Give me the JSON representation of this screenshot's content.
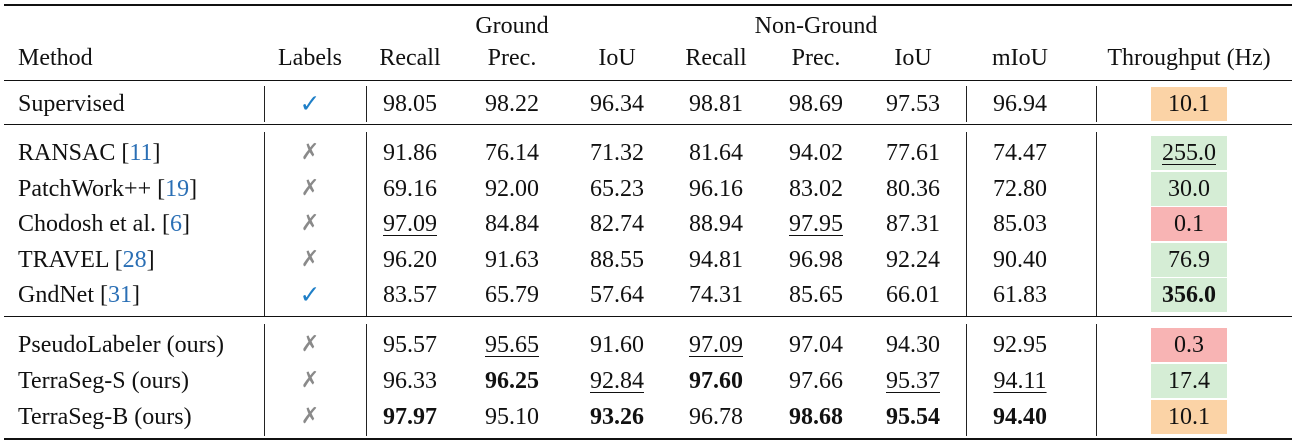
{
  "header": {
    "group_ground": "Ground",
    "group_nonground": "Non-Ground",
    "columns": [
      "Method",
      "Labels",
      "Recall",
      "Prec.",
      "IoU",
      "Recall",
      "Prec.",
      "IoU",
      "mIoU",
      "Throughput (Hz)"
    ]
  },
  "groups": [
    [
      {
        "name": "Supervised",
        "ref": "",
        "labels": "✓",
        "labels_kind": "check",
        "values": [
          "98.05",
          "98.22",
          "96.34",
          "98.81",
          "98.69",
          "97.53",
          "96.94"
        ],
        "bold": [],
        "underline": [],
        "throughput": "10.1",
        "tp_color": "#fbd3a6",
        "tp_bold": false,
        "tp_underline": false
      }
    ],
    [
      {
        "name": "RANSAC ",
        "ref": "11",
        "labels": "✗",
        "labels_kind": "cross",
        "values": [
          "91.86",
          "76.14",
          "71.32",
          "81.64",
          "94.02",
          "77.61",
          "74.47"
        ],
        "bold": [],
        "underline": [],
        "throughput": "255.0",
        "tp_color": "#d5edd5",
        "tp_bold": false,
        "tp_underline": true
      },
      {
        "name": "PatchWork++ ",
        "ref": "19",
        "labels": "✗",
        "labels_kind": "cross",
        "values": [
          "69.16",
          "92.00",
          "65.23",
          "96.16",
          "83.02",
          "80.36",
          "72.80"
        ],
        "bold": [],
        "underline": [],
        "throughput": "30.0",
        "tp_color": "#d5edd5",
        "tp_bold": false,
        "tp_underline": false
      },
      {
        "name": "Chodosh et al. ",
        "ref": "6",
        "labels": "✗",
        "labels_kind": "cross",
        "values": [
          "97.09",
          "84.84",
          "82.74",
          "88.94",
          "97.95",
          "87.31",
          "85.03"
        ],
        "bold": [],
        "underline": [
          0,
          4
        ],
        "throughput": "0.1",
        "tp_color": "#f8b4b4",
        "tp_bold": false,
        "tp_underline": false
      },
      {
        "name": "TRAVEL ",
        "ref": "28",
        "labels": "✗",
        "labels_kind": "cross",
        "values": [
          "96.20",
          "91.63",
          "88.55",
          "94.81",
          "96.98",
          "92.24",
          "90.40"
        ],
        "bold": [],
        "underline": [],
        "throughput": "76.9",
        "tp_color": "#d5edd5",
        "tp_bold": false,
        "tp_underline": false
      },
      {
        "name": "GndNet ",
        "ref": "31",
        "labels": "✓",
        "labels_kind": "check",
        "values": [
          "83.57",
          "65.79",
          "57.64",
          "74.31",
          "85.65",
          "66.01",
          "61.83"
        ],
        "bold": [],
        "underline": [],
        "throughput": "356.0",
        "tp_color": "#d5edd5",
        "tp_bold": true,
        "tp_underline": false
      }
    ],
    [
      {
        "name": "PseudoLabeler (ours)",
        "ref": "",
        "labels": "✗",
        "labels_kind": "cross",
        "values": [
          "95.57",
          "95.65",
          "91.60",
          "97.09",
          "97.04",
          "94.30",
          "92.95"
        ],
        "bold": [],
        "underline": [
          1,
          3
        ],
        "throughput": "0.3",
        "tp_color": "#f8b4b4",
        "tp_bold": false,
        "tp_underline": false
      },
      {
        "name": "TerraSeg-S (ours)",
        "ref": "",
        "labels": "✗",
        "labels_kind": "cross",
        "values": [
          "96.33",
          "96.25",
          "92.84",
          "97.60",
          "97.66",
          "95.37",
          "94.11"
        ],
        "bold": [
          1,
          3
        ],
        "underline": [
          2,
          5,
          6
        ],
        "throughput": "17.4",
        "tp_color": "#d5edd5",
        "tp_bold": false,
        "tp_underline": false
      },
      {
        "name": "TerraSeg-B (ours)",
        "ref": "",
        "labels": "✗",
        "labels_kind": "cross",
        "values": [
          "97.97",
          "95.10",
          "93.26",
          "96.78",
          "98.68",
          "95.54",
          "94.40"
        ],
        "bold": [
          0,
          2,
          4,
          5,
          6
        ],
        "underline": [],
        "throughput": "10.1",
        "tp_color": "#fbd3a6",
        "tp_bold": false,
        "tp_underline": false
      }
    ]
  ]
}
